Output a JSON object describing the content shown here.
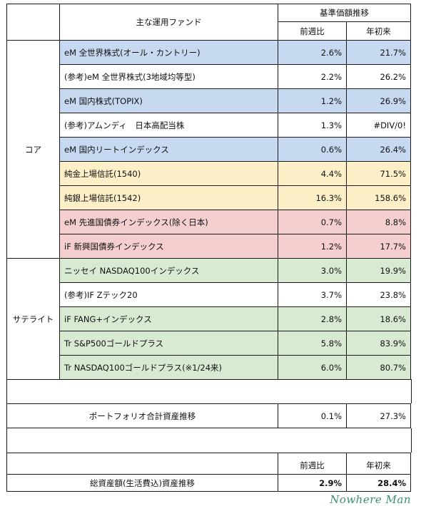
{
  "header": {
    "fund_col": "主な運用ファンド",
    "price_trend": "基準価額推移",
    "weekly": "前週比",
    "ytd": "年初来"
  },
  "groups": {
    "core": "コア",
    "satellite": "サテライト"
  },
  "colors": {
    "blue": "#c6d9f0",
    "yellow": "#fdefc7",
    "red": "#f5cfcf",
    "green": "#d9ead3"
  },
  "funds": [
    {
      "name": "eM 全世界株式(オール・カントリー)",
      "weekly": "2.6%",
      "ytd": "21.7%"
    },
    {
      "name": "(参考)eM 全世界株式(3地域均等型)",
      "weekly": "2.2%",
      "ytd": "26.2%"
    },
    {
      "name": "eM 国内株式(TOPIX)",
      "weekly": "1.2%",
      "ytd": "26.9%"
    },
    {
      "name": "(参考)アムンディ　日本高配当株",
      "weekly": "1.3%",
      "ytd": "#DIV/0!"
    },
    {
      "name": "eM 国内リートインデックス",
      "weekly": "0.6%",
      "ytd": "26.4%"
    },
    {
      "name": "純金上場信託(1540)",
      "weekly": "4.4%",
      "ytd": "71.5%"
    },
    {
      "name": "純銀上場信託(1542)",
      "weekly": "16.3%",
      "ytd": "158.6%"
    },
    {
      "name": "eM 先進国債券インデックス(除く日本)",
      "weekly": "0.7%",
      "ytd": "8.8%"
    },
    {
      "name": "iF 新興国債券インデックス",
      "weekly": "1.2%",
      "ytd": "17.7%"
    },
    {
      "name": "ニッセイ NASDAQ100インデックス",
      "weekly": "3.0%",
      "ytd": "19.9%"
    },
    {
      "name": "(参考)IF Zテック20",
      "weekly": "3.7%",
      "ytd": "23.8%"
    },
    {
      "name": "iF FANG+インデックス",
      "weekly": "2.8%",
      "ytd": "18.6%"
    },
    {
      "name": "Tr S&P500ゴールドプラス",
      "weekly": "5.8%",
      "ytd": "83.9%"
    },
    {
      "name": "Tr NASDAQ100ゴールドプラス(※1/24来)",
      "weekly": "6.0%",
      "ytd": "80.7%"
    }
  ],
  "portfolio": {
    "label": "ポートフォリオ合計資産推移",
    "weekly": "0.1%",
    "ytd": "27.3%"
  },
  "total": {
    "weekly_header": "前週比",
    "ytd_header": "年初来",
    "label": "総資産額(生活費込)資産推移",
    "weekly": "2.9%",
    "ytd": "28.4%"
  },
  "signature": "Nowhere Man"
}
